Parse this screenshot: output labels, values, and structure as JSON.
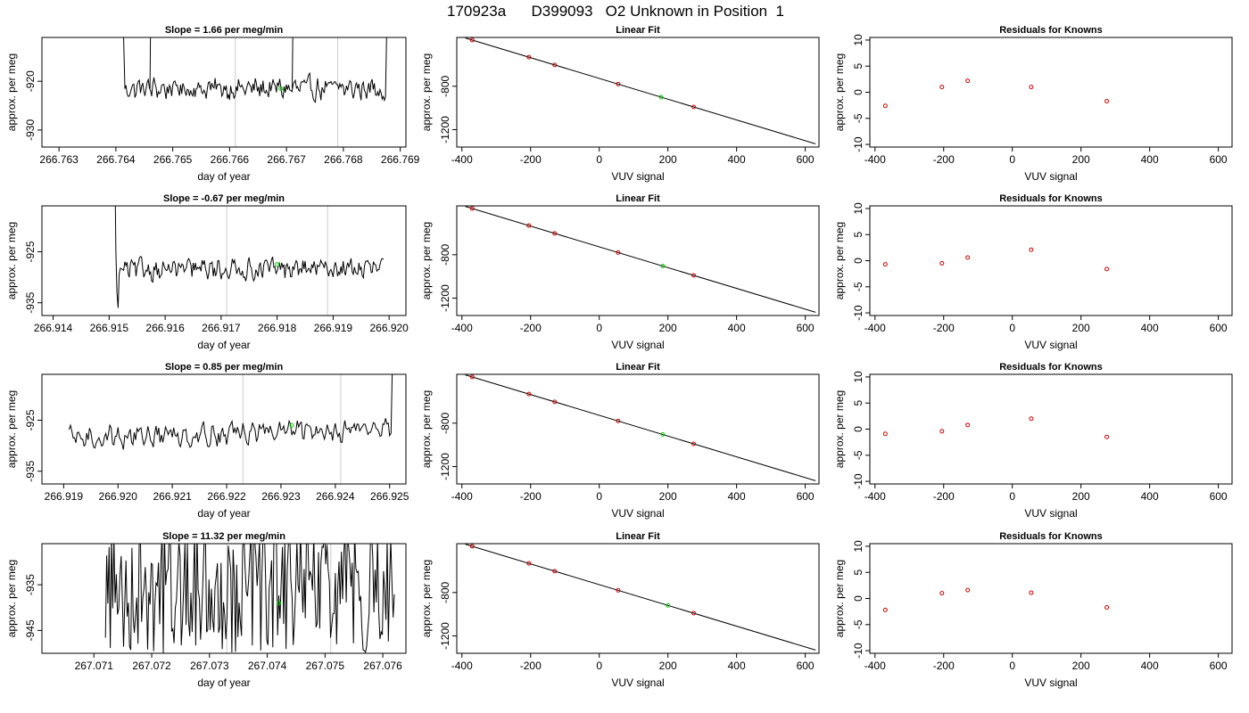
{
  "figure": {
    "title": "170923a      D399093   O2 Unknown in Position  1"
  },
  "colors": {
    "ts_line": "#000000",
    "vline": "#cccccc",
    "marker_green": "#00cc00",
    "marker_red": "#cc0000",
    "fit_line": "#000000"
  },
  "chart_data": [
    {
      "type": "line",
      "row": 0,
      "col": 0,
      "title": "Slope =  1.66  per meg/min",
      "xlabel": "day of year",
      "ylabel": "approx. per meg",
      "xlim": [
        266.7627,
        266.7691
      ],
      "ylim": [
        -933.5,
        -911
      ],
      "xticks": [
        266.763,
        266.764,
        266.765,
        266.766,
        266.767,
        266.768,
        266.769
      ],
      "xtick_labels": [
        "266.763",
        "266.764",
        "266.765",
        "266.766",
        "266.767",
        "266.768",
        "266.769"
      ],
      "yticks": [
        -920,
        -930
      ],
      "ytick_labels": [
        "-920",
        "-930"
      ],
      "vlines": [
        266.7661,
        266.7679
      ],
      "series": [
        {
          "x_start": 266.7641,
          "x_end": 266.7688,
          "noise_amp": 1.8,
          "lead_in": [
            -895,
            -905,
            -912
          ],
          "lead_out": [
            -918,
            -910,
            -895
          ],
          "base": -921.5,
          "drift": 0
        }
      ],
      "marker": {
        "x": 266.7669,
        "y": -921.5
      },
      "spikes": [
        [
          266.7646,
          -880
        ],
        [
          266.7671,
          -890
        ]
      ]
    },
    {
      "type": "line",
      "row": 0,
      "col": 1,
      "title": "Linear Fit",
      "xlabel": "VUV signal",
      "ylabel": "approx. per meg",
      "xlim": [
        -415,
        640
      ],
      "ylim": [
        -1360,
        -350
      ],
      "xticks": [
        -400,
        -200,
        0,
        200,
        400,
        600
      ],
      "xtick_labels": [
        "-400",
        "-200",
        "0",
        "200",
        "400",
        "600"
      ],
      "yticks": [
        -800,
        -1200
      ],
      "ytick_labels": [
        "-800",
        "-1200"
      ],
      "fit": {
        "x0": -390,
        "y0": -355,
        "x1": 630,
        "y1": -1330
      },
      "knowns_x": [
        -370,
        -205,
        -130,
        55,
        275
      ],
      "unknown_x": 180
    },
    {
      "type": "scatter",
      "row": 0,
      "col": 2,
      "title": "Residuals for Knowns",
      "xlabel": "VUV signal",
      "ylabel": "approx. per meg",
      "xlim": [
        -415,
        640
      ],
      "ylim": [
        -10.5,
        10.5
      ],
      "xticks": [
        -400,
        -200,
        0,
        200,
        400,
        600
      ],
      "xtick_labels": [
        "-400",
        "-200",
        "0",
        "200",
        "400",
        "600"
      ],
      "yticks": [
        10,
        5,
        0,
        -5,
        -10
      ],
      "ytick_labels": [
        "10",
        "5",
        "0",
        "-5",
        "-10"
      ],
      "x": [
        -370,
        -205,
        -130,
        55,
        275
      ],
      "y": [
        -2.6,
        1.0,
        2.2,
        1.0,
        -1.7
      ]
    },
    {
      "type": "line",
      "row": 1,
      "col": 0,
      "title": "Slope =  -0.67  per meg/min",
      "xlabel": "day of year",
      "ylabel": "approx. per meg",
      "xlim": [
        266.9138,
        266.9203
      ],
      "ylim": [
        -937.5,
        -916
      ],
      "xticks": [
        266.914,
        266.915,
        266.916,
        266.917,
        266.918,
        266.919,
        266.92
      ],
      "xtick_labels": [
        "266.914",
        "266.915",
        "266.916",
        "266.917",
        "266.918",
        "266.919",
        "266.920"
      ],
      "yticks": [
        -925,
        -935
      ],
      "ytick_labels": [
        "-925",
        "-935"
      ],
      "vlines": [
        266.9171,
        266.9189
      ],
      "series": [
        {
          "x_start": 266.9151,
          "x_end": 266.9199,
          "noise_amp": 1.6,
          "lead_in": [
            -905,
            -925,
            -933,
            -936
          ],
          "lead_out": [],
          "base": -928.5,
          "drift": 0.2
        }
      ],
      "marker": {
        "x": 266.918,
        "y": -927.5
      },
      "spikes": []
    },
    {
      "type": "line",
      "row": 1,
      "col": 1,
      "title": "Linear Fit",
      "xlabel": "VUV signal",
      "ylabel": "approx. per meg",
      "xlim": [
        -415,
        640
      ],
      "ylim": [
        -1360,
        -350
      ],
      "xticks": [
        -400,
        -200,
        0,
        200,
        400,
        600
      ],
      "xtick_labels": [
        "-400",
        "-200",
        "0",
        "200",
        "400",
        "600"
      ],
      "yticks": [
        -800,
        -1200
      ],
      "ytick_labels": [
        "-800",
        "-1200"
      ],
      "fit": {
        "x0": -390,
        "y0": -355,
        "x1": 630,
        "y1": -1330
      },
      "knowns_x": [
        -370,
        -205,
        -130,
        55,
        275
      ],
      "unknown_x": 185
    },
    {
      "type": "scatter",
      "row": 1,
      "col": 2,
      "title": "Residuals for Knowns",
      "xlabel": "VUV signal",
      "ylabel": "approx. per meg",
      "xlim": [
        -415,
        640
      ],
      "ylim": [
        -10.5,
        10.5
      ],
      "xticks": [
        -400,
        -200,
        0,
        200,
        400,
        600
      ],
      "xtick_labels": [
        "-400",
        "-200",
        "0",
        "200",
        "400",
        "600"
      ],
      "yticks": [
        10,
        5,
        0,
        -5,
        -10
      ],
      "ytick_labels": [
        "10",
        "5",
        "0",
        "-5",
        "-10"
      ],
      "x": [
        -370,
        -205,
        -130,
        55,
        275
      ],
      "y": [
        -0.7,
        -0.5,
        0.6,
        2.1,
        -1.6
      ]
    },
    {
      "type": "line",
      "row": 2,
      "col": 0,
      "title": "Slope =  0.85  per meg/min",
      "xlabel": "day of year",
      "ylabel": "approx. per meg",
      "xlim": [
        266.9186,
        266.9253
      ],
      "ylim": [
        -937.5,
        -916
      ],
      "xticks": [
        266.919,
        266.92,
        266.921,
        266.922,
        266.923,
        266.924,
        266.925
      ],
      "xtick_labels": [
        "266.919",
        "266.920",
        "266.921",
        "266.922",
        "266.923",
        "266.924",
        "266.925"
      ],
      "yticks": [
        -925,
        -935
      ],
      "ytick_labels": [
        "-925",
        "-935"
      ],
      "vlines": [
        266.9223,
        266.9241
      ],
      "series": [
        {
          "x_start": 266.9191,
          "x_end": 266.9251,
          "noise_amp": 1.7,
          "lead_in": [],
          "lead_out": [
            -922,
            -914,
            -905
          ],
          "base": -928.5,
          "drift": 2.0
        }
      ],
      "marker": {
        "x": 266.9232,
        "y": -926.0
      },
      "spikes": []
    },
    {
      "type": "line",
      "row": 2,
      "col": 1,
      "title": "Linear Fit",
      "xlabel": "VUV signal",
      "ylabel": "approx. per meg",
      "xlim": [
        -415,
        640
      ],
      "ylim": [
        -1360,
        -350
      ],
      "xticks": [
        -400,
        -200,
        0,
        200,
        400,
        600
      ],
      "xtick_labels": [
        "-400",
        "-200",
        "0",
        "200",
        "400",
        "600"
      ],
      "yticks": [
        -800,
        -1200
      ],
      "ytick_labels": [
        "-800",
        "-1200"
      ],
      "fit": {
        "x0": -390,
        "y0": -355,
        "x1": 630,
        "y1": -1330
      },
      "knowns_x": [
        -370,
        -205,
        -130,
        55,
        275
      ],
      "unknown_x": 185
    },
    {
      "type": "scatter",
      "row": 2,
      "col": 2,
      "title": "Residuals for Knowns",
      "xlabel": "VUV signal",
      "ylabel": "approx. per meg",
      "xlim": [
        -415,
        640
      ],
      "ylim": [
        -10.5,
        10.5
      ],
      "xticks": [
        -400,
        -200,
        0,
        200,
        400,
        600
      ],
      "xtick_labels": [
        "-400",
        "-200",
        "0",
        "200",
        "400",
        "600"
      ],
      "yticks": [
        10,
        5,
        0,
        -5,
        -10
      ],
      "ytick_labels": [
        "10",
        "5",
        "0",
        "-5",
        "-10"
      ],
      "x": [
        -370,
        -205,
        -130,
        55,
        275
      ],
      "y": [
        -0.9,
        -0.4,
        0.8,
        2.0,
        -1.5
      ]
    },
    {
      "type": "line",
      "row": 3,
      "col": 0,
      "title": "Slope =  11.32  per meg/min",
      "xlabel": "day of year",
      "ylabel": "approx. per meg",
      "xlim": [
        267.0701,
        267.0764
      ],
      "ylim": [
        -950,
        -926
      ],
      "xticks": [
        267.071,
        267.072,
        267.073,
        267.074,
        267.075,
        267.076
      ],
      "xtick_labels": [
        "267.071",
        "267.072",
        "267.073",
        "267.074",
        "267.075",
        "267.076"
      ],
      "yticks": [
        -935,
        -945
      ],
      "ytick_labels": [
        "-935",
        "-945"
      ],
      "vlines": [
        267.0733,
        267.0751
      ],
      "series": [
        {
          "x_start": 267.0712,
          "x_end": 267.0762,
          "noise_amp": 14,
          "lead_in": [],
          "lead_out": [],
          "base": -936,
          "drift": 0
        }
      ],
      "marker": {
        "x": 267.0742,
        "y": -939.0
      },
      "spikes": []
    },
    {
      "type": "line",
      "row": 3,
      "col": 1,
      "title": "Linear Fit",
      "xlabel": "VUV signal",
      "ylabel": "approx. per meg",
      "xlim": [
        -415,
        640
      ],
      "ylim": [
        -1360,
        -350
      ],
      "xticks": [
        -400,
        -200,
        0,
        200,
        400,
        600
      ],
      "xtick_labels": [
        "-400",
        "-200",
        "0",
        "200",
        "400",
        "600"
      ],
      "yticks": [
        -800,
        -1200
      ],
      "ytick_labels": [
        "-800",
        "-1200"
      ],
      "fit": {
        "x0": -390,
        "y0": -355,
        "x1": 630,
        "y1": -1330
      },
      "knowns_x": [
        -370,
        -205,
        -130,
        55,
        275
      ],
      "unknown_x": 200
    },
    {
      "type": "scatter",
      "row": 3,
      "col": 2,
      "title": "Residuals for Knowns",
      "xlabel": "VUV signal",
      "ylabel": "approx. per meg",
      "xlim": [
        -415,
        640
      ],
      "ylim": [
        -10.5,
        10.5
      ],
      "xticks": [
        -400,
        -200,
        0,
        200,
        400,
        600
      ],
      "xtick_labels": [
        "-400",
        "-200",
        "0",
        "200",
        "400",
        "600"
      ],
      "yticks": [
        10,
        5,
        0,
        -5,
        -10
      ],
      "ytick_labels": [
        "10",
        "5",
        "0",
        "-5",
        "-10"
      ],
      "x": [
        -370,
        -205,
        -130,
        55,
        275
      ],
      "y": [
        -2.2,
        1.0,
        1.6,
        1.1,
        -1.7
      ]
    }
  ]
}
